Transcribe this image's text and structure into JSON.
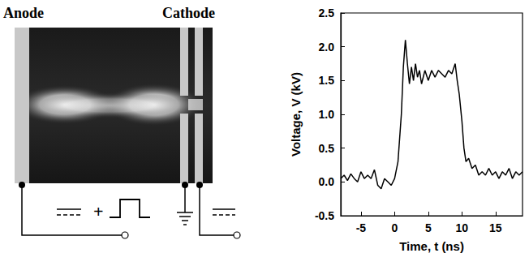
{
  "diagram": {
    "labels": [
      "Anode",
      "Cathode"
    ],
    "circuit_sign": "+"
  },
  "chart_data": {
    "type": "line",
    "x_label": "Time, t (ns)",
    "y_label": "Voltage, V (kV)",
    "x": [
      -8,
      -7.5,
      -7,
      -6.5,
      -6,
      -5.5,
      -5,
      -4.5,
      -4,
      -3.5,
      -3,
      -2.5,
      -2,
      -1.5,
      -1,
      -0.5,
      0,
      0.5,
      1,
      1.3,
      1.6,
      1.9,
      2.2,
      2.5,
      2.8,
      3.1,
      3.4,
      3.7,
      4,
      4.5,
      5,
      5.5,
      6,
      6.5,
      7,
      7.5,
      8,
      8.5,
      9,
      9.3,
      9.6,
      10,
      10.3,
      10.6,
      11,
      11.5,
      12,
      12.5,
      13,
      13.5,
      14,
      14.5,
      15,
      15.5,
      16,
      16.5,
      17,
      17.5,
      18,
      18.5,
      19
    ],
    "values": [
      0.05,
      0.1,
      0.02,
      0.12,
      0.05,
      0.0,
      0.15,
      0.05,
      0.1,
      0.05,
      0.18,
      -0.05,
      -0.1,
      0.05,
      0.0,
      -0.05,
      0.05,
      0.3,
      1.0,
      1.7,
      2.1,
      1.75,
      1.45,
      1.7,
      1.5,
      1.75,
      1.55,
      1.65,
      1.45,
      1.65,
      1.5,
      1.65,
      1.55,
      1.65,
      1.6,
      1.55,
      1.65,
      1.6,
      1.75,
      1.5,
      1.3,
      0.9,
      0.5,
      0.3,
      0.35,
      0.2,
      0.25,
      0.1,
      0.15,
      0.1,
      0.2,
      0.1,
      0.15,
      0.05,
      0.15,
      0.1,
      0.2,
      0.05,
      0.15,
      0.1,
      0.15
    ],
    "color": "#000000",
    "xlim": [
      -8,
      19
    ],
    "xticks": [
      -5,
      0,
      5,
      10,
      15
    ],
    "ylim": [
      -0.5,
      2.5
    ],
    "yticks": [
      {
        "value": -0.5,
        "label": "-0.5"
      },
      {
        "value": 0,
        "label": "0.0"
      },
      {
        "value": 0.5,
        "label": "0.5"
      },
      {
        "value": 1,
        "label": "1.0"
      },
      {
        "value": 1.5,
        "label": "1.5"
      },
      {
        "value": 2,
        "label": "2.0"
      },
      {
        "value": 2.5,
        "label": "2.5"
      }
    ],
    "grid": false
  }
}
